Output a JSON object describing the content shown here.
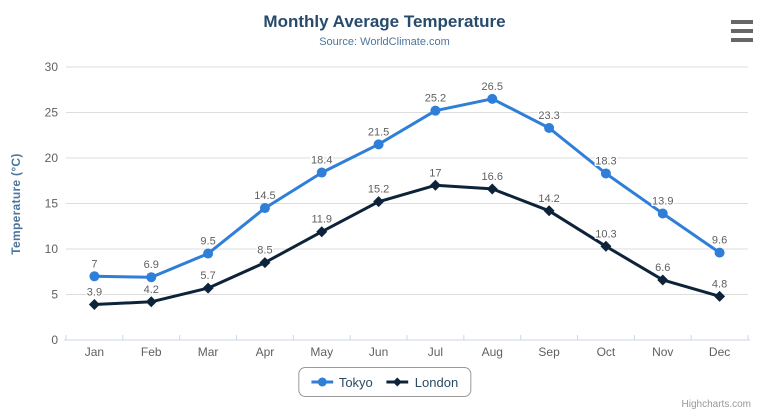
{
  "chart_data": {
    "type": "line",
    "title": "Monthly Average Temperature",
    "subtitle": "Source: WorldClimate.com",
    "xlabel": "",
    "ylabel": "Temperature (°C)",
    "ylim": [
      0,
      30
    ],
    "ytick_interval": 5,
    "grid": true,
    "legend_position": "bottom",
    "categories": [
      "Jan",
      "Feb",
      "Mar",
      "Apr",
      "May",
      "Jun",
      "Jul",
      "Aug",
      "Sep",
      "Oct",
      "Nov",
      "Dec"
    ],
    "series": [
      {
        "name": "Tokyo",
        "color": "#2f7ed8",
        "marker": "circle",
        "values": [
          7,
          6.9,
          9.5,
          14.5,
          18.4,
          21.5,
          25.2,
          26.5,
          23.3,
          18.3,
          13.9,
          9.6
        ]
      },
      {
        "name": "London",
        "color": "#0d233a",
        "marker": "diamond",
        "values": [
          3.9,
          4.2,
          5.7,
          8.5,
          11.9,
          15.2,
          17,
          16.6,
          14.2,
          10.3,
          6.6,
          4.8
        ]
      }
    ],
    "style": {
      "grid_color": "#dddddd",
      "axis_line_color": "#ccd6eb",
      "tick_label_color": "#606060",
      "data_label_color": "#606060",
      "title_color": "#274b6d",
      "subtitle_color": "#4d759e",
      "axis_title_color": "#4d759e"
    }
  },
  "icons": {
    "menu": "hamburger-menu-icon"
  },
  "credit": {
    "label": "Highcharts.com"
  }
}
